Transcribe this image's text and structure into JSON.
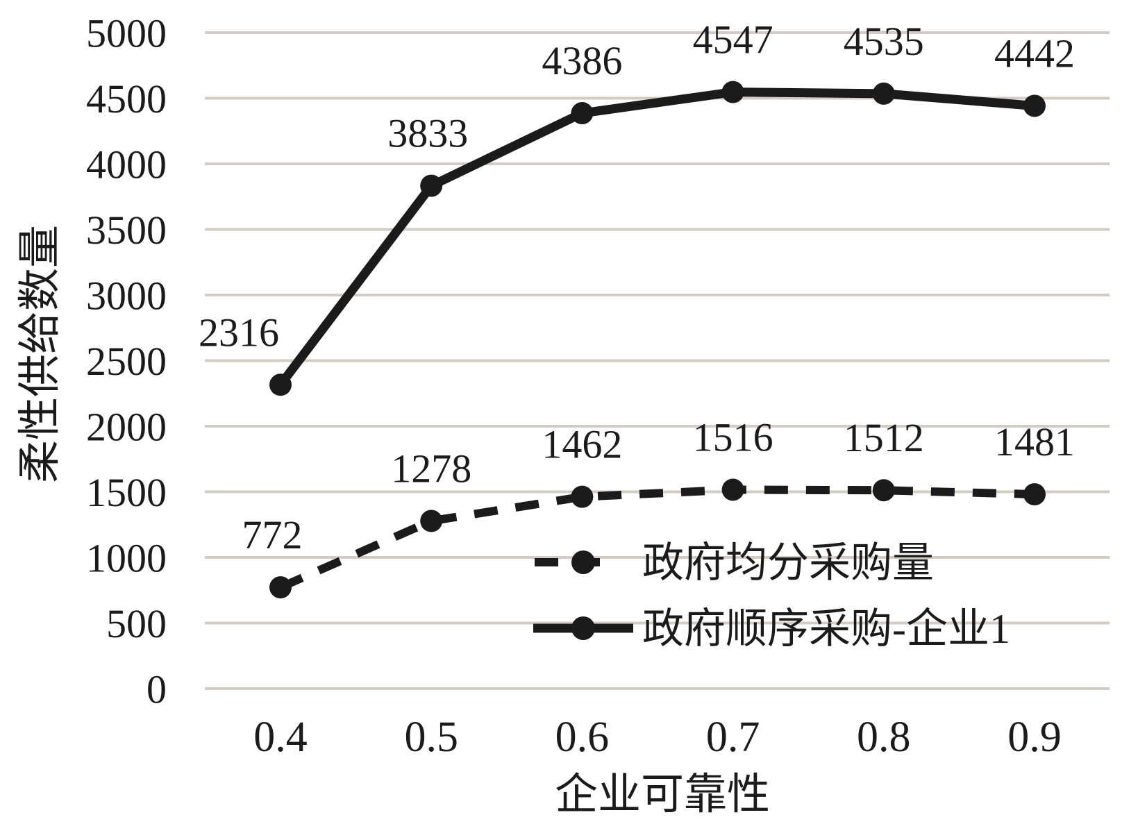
{
  "chart_data": {
    "type": "line",
    "title": "",
    "xlabel": "企业可靠性",
    "ylabel": "柔性供给数量",
    "x_tick_labels": [
      "0.4",
      "0.5",
      "0.6",
      "0.7",
      "0.8",
      "0.9"
    ],
    "x": [
      0.4,
      0.5,
      0.6,
      0.7,
      0.8,
      0.9
    ],
    "ylim": [
      0,
      5000
    ],
    "ytick_step": 500,
    "y_tick_labels": [
      "0",
      "500",
      "1000",
      "1500",
      "2000",
      "2500",
      "3000",
      "3500",
      "4000",
      "4500",
      "5000"
    ],
    "grid": "horizontal-only",
    "legend_position": "inside-lower-right",
    "series": [
      {
        "name": "政府均分采购量",
        "style": "dashed",
        "marker": "circle",
        "values": [
          772,
          1278,
          1462,
          1516,
          1512,
          1481
        ],
        "data_labels": [
          "772",
          "1278",
          "1462",
          "1516",
          "1512",
          "1481"
        ]
      },
      {
        "name": "政府顺序采购-企业1",
        "style": "solid",
        "marker": "circle",
        "values": [
          2316,
          3833,
          4386,
          4547,
          4535,
          4442
        ],
        "data_labels": [
          "2316",
          "3833",
          "4386",
          "4547",
          "4535",
          "4442"
        ]
      }
    ]
  },
  "colors": {
    "background": "#ffffff",
    "line": "#1b1b1b",
    "text": "#1b1b1b",
    "grid": "#d3ccc5"
  }
}
